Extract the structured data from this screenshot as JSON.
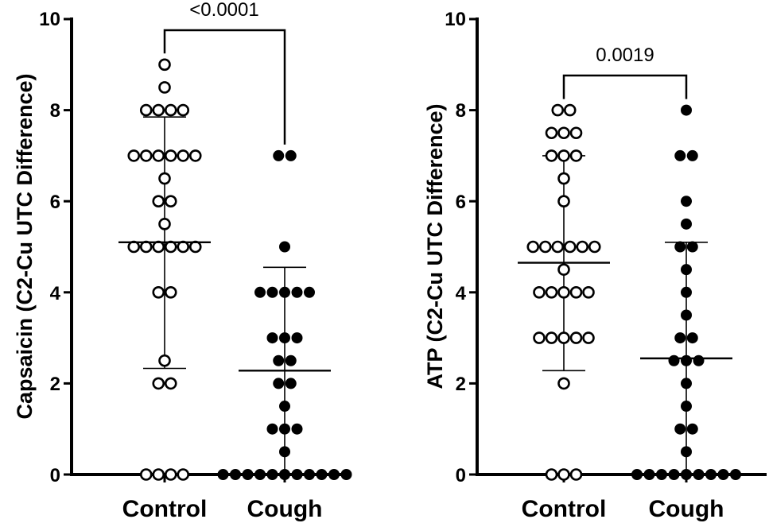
{
  "chart_data": [
    {
      "type": "scatter",
      "subtype": "dot-plot-with-mean-sd",
      "ylabel": "Capsaicin (C2-Cu UTC Difference)",
      "ylim": [
        0,
        10
      ],
      "yticks": [
        0,
        2,
        4,
        6,
        8,
        10
      ],
      "ytick_labels": [
        "0",
        "2",
        "4",
        "6",
        "8",
        "10"
      ],
      "categories": [
        "Control",
        "Cough"
      ],
      "significance": {
        "label": "<0.0001",
        "between": [
          "Control",
          "Cough"
        ]
      },
      "groups": [
        {
          "category": "Control",
          "marker": "open-circle",
          "mean": 5.1,
          "sd_low": 2.33,
          "sd_high": 7.85,
          "values": [
            9,
            8.5,
            8,
            8,
            8,
            8,
            7,
            7,
            7,
            7,
            7,
            7,
            6.5,
            6,
            6,
            5.5,
            5,
            5,
            5,
            5,
            5,
            5,
            4,
            4,
            2.5,
            2,
            2,
            0,
            0,
            0,
            0
          ]
        },
        {
          "category": "Cough",
          "marker": "filled-circle",
          "mean": 2.28,
          "sd_low": 0,
          "sd_high": 4.55,
          "values": [
            7,
            7,
            5,
            4,
            4,
            4,
            4,
            4,
            3,
            3,
            3,
            2.5,
            2.5,
            2,
            2,
            1.5,
            1,
            1,
            1,
            0.5,
            0,
            0,
            0,
            0,
            0,
            0,
            0,
            0,
            0,
            0,
            0
          ]
        }
      ]
    },
    {
      "type": "scatter",
      "subtype": "dot-plot-with-mean-sd",
      "ylabel": "ATP (C2-Cu UTC Difference)",
      "ylim": [
        0,
        10
      ],
      "yticks": [
        0,
        2,
        4,
        6,
        8,
        10
      ],
      "ytick_labels": [
        "0",
        "2",
        "4",
        "6",
        "8",
        "10"
      ],
      "categories": [
        "Control",
        "Cough"
      ],
      "significance": {
        "label": "0.0019",
        "between": [
          "Control",
          "Cough"
        ]
      },
      "groups": [
        {
          "category": "Control",
          "marker": "open-circle",
          "mean": 4.65,
          "sd_low": 2.28,
          "sd_high": 7.0,
          "values": [
            8,
            8,
            7.5,
            7.5,
            7.5,
            7,
            7,
            7,
            6.5,
            6,
            5,
            5,
            5,
            5,
            5,
            5,
            4.5,
            4,
            4,
            4,
            4,
            4,
            3,
            3,
            3,
            3,
            3,
            2,
            0,
            0,
            0
          ]
        },
        {
          "category": "Cough",
          "marker": "filled-circle",
          "mean": 2.55,
          "sd_low": 0,
          "sd_high": 5.1,
          "values": [
            8,
            7,
            7,
            6,
            5.5,
            5,
            5,
            4.5,
            4,
            3.5,
            3,
            3,
            2.5,
            2.5,
            2.5,
            2,
            1.5,
            1,
            1,
            0.5,
            0,
            0,
            0,
            0,
            0,
            0,
            0,
            0,
            0
          ]
        }
      ]
    }
  ]
}
